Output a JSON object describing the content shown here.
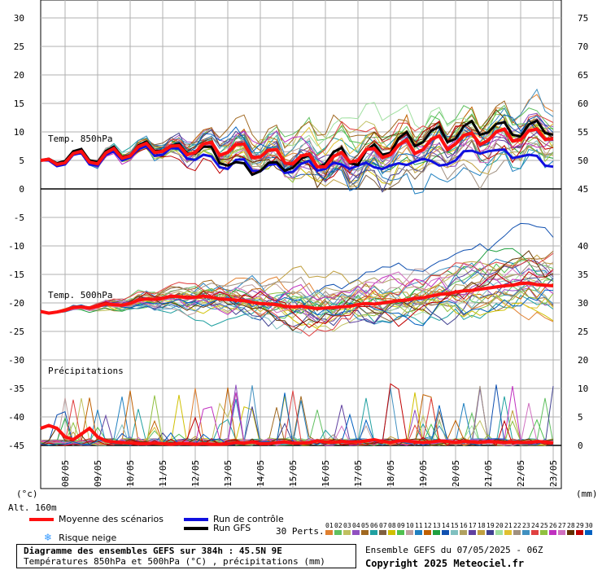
{
  "chart_data": {
    "type": "line",
    "title": "Diagramme des ensembles GEFS sur 384h : 45.5N 9E",
    "subtitle": "Températures 850hPa et 500hPa (°C) , précipitations (mm)",
    "x_labels": [
      "08/05",
      "09/05",
      "10/05",
      "11/05",
      "12/05",
      "13/05",
      "14/05",
      "15/05",
      "16/05",
      "17/05",
      "18/05",
      "19/05",
      "20/05",
      "21/05",
      "22/05",
      "23/05"
    ],
    "x_unit": "6h steps from 07/05 06Z",
    "left_axis": {
      "label": "(°c)",
      "ticks": [
        "30",
        "25",
        "20",
        "15",
        "10",
        "5",
        "0",
        "-5",
        "-10",
        "-15",
        "-20",
        "-25",
        "-30",
        "-35",
        "-40",
        "-45"
      ]
    },
    "right_axis": {
      "label": "(mm)",
      "ticks_t850": [
        "75",
        "70",
        "65",
        "60",
        "55",
        "50",
        "45"
      ],
      "ticks_t500": [
        "40",
        "35",
        "30",
        "25",
        "20"
      ],
      "ticks_precip": [
        "10",
        "5",
        "0"
      ]
    },
    "panels": [
      {
        "label": "Temp. 850hPa",
        "mean": [
          5,
          5.2,
          4.3,
          4.6,
          6.2,
          6.6,
          4.7,
          4.4,
          6.3,
          7.1,
          5.4,
          5.8,
          7.4,
          8,
          6.4,
          6.6,
          7.5,
          7.6,
          6,
          6.4,
          7.9,
          8.2,
          5.9,
          6.4,
          7.8,
          7.9,
          5.5,
          5.6,
          6.8,
          6.9,
          4.6,
          4.4,
          5.8,
          6.1,
          3.9,
          3.9,
          5.7,
          6.4,
          4.7,
          5,
          6.9,
          7.1,
          5.5,
          6,
          7.7,
          8.6,
          6.2,
          6.9,
          8.7,
          9.3,
          6.9,
          7.9,
          9.4,
          9.8,
          7.8,
          8.5,
          10,
          10.5,
          8.4,
          8.6,
          10.2,
          10.5,
          8.7,
          8.8
        ],
        "control": [
          5,
          5,
          4,
          4.3,
          6,
          6.3,
          4.3,
          4.1,
          6,
          6.6,
          5,
          5.5,
          7,
          7.5,
          5.8,
          6,
          7.2,
          7.1,
          5.3,
          5.1,
          6,
          5.7,
          3.8,
          3.5,
          5.1,
          5.2,
          3.2,
          3.1,
          4.2,
          4.4,
          2.8,
          3,
          4.4,
          4.9,
          3.2,
          3.5,
          4.6,
          4.3,
          3.5,
          4.1,
          4.6,
          3.8,
          3.5,
          4.1,
          4.5,
          4.2,
          4.8,
          5.3,
          4.9,
          4.1,
          4.3,
          5,
          6.6,
          6.7,
          6.2,
          6.6,
          6.8,
          6.9,
          5.4,
          5.7,
          6,
          5.8,
          4.1,
          3.9
        ],
        "gfs": [
          5,
          5.3,
          4.5,
          4.9,
          6.6,
          7,
          5,
          4.7,
          6.6,
          7.4,
          5.6,
          5.9,
          7.6,
          8.3,
          6.6,
          6.7,
          7.6,
          7.9,
          6.2,
          6.2,
          7.4,
          7.4,
          4.5,
          4.1,
          4.7,
          4.5,
          2.5,
          3.1,
          4.6,
          4.7,
          3.2,
          3.7,
          5.3,
          5.9,
          3.8,
          4.4,
          6.5,
          7.2,
          4.5,
          4.2,
          6.7,
          7.8,
          6,
          6.3,
          8.9,
          10,
          7.5,
          8.2,
          10.2,
          10.9,
          8.2,
          8.8,
          11,
          11.9,
          9.5,
          9.9,
          11.4,
          11.7,
          9.5,
          9.2,
          11.3,
          12,
          9.8,
          9.5
        ]
      },
      {
        "label": "Temp. 500hPa",
        "mean": [
          -21.5,
          -21.8,
          -21.6,
          -21.3,
          -20.8,
          -20.7,
          -20.9,
          -20.6,
          -20.2,
          -20.3,
          -20.4,
          -20.1,
          -19.5,
          -19.3,
          -19.4,
          -19.2,
          -18.8,
          -18.9,
          -19.1,
          -19,
          -18.8,
          -19,
          -19.3,
          -19.4,
          -19.5,
          -19.6,
          -19.9,
          -20.1,
          -20.2,
          -20.3,
          -20.6,
          -20.7,
          -20.6,
          -20.8,
          -21,
          -20.9,
          -20.8,
          -20.7,
          -20.6,
          -20.3,
          -20.1,
          -20.2,
          -20,
          -19.8,
          -19.6,
          -19.5,
          -19.2,
          -19.1,
          -18.8,
          -18.5,
          -18.4,
          -18.1,
          -17.9,
          -17.8,
          -17.6,
          -17.4,
          -17.2,
          -17,
          -16.9,
          -16.6,
          -16.5,
          -16.8,
          -16.9,
          -17
        ]
      },
      {
        "label": "Précipitations",
        "mean": [
          3,
          3.5,
          3,
          1.5,
          1,
          2,
          3,
          1.5,
          0.8,
          0.6,
          0.5,
          0.4,
          0.3,
          0.3,
          0.4,
          0.3,
          0.2,
          0.3,
          0.3,
          0.2,
          0.3,
          0.2,
          0.2,
          0.3,
          0.5,
          0.4,
          0.6,
          0.3,
          0.3,
          0.5,
          0.6,
          0.4,
          0.4,
          0.5,
          0.8,
          0.6,
          0.5,
          0.7,
          0.6,
          0.6,
          0.8,
          1,
          0.7,
          0.5,
          0.8,
          0.8,
          0.6,
          0.5,
          0.6,
          0.8,
          0.7,
          0.5,
          0.7,
          0.6,
          0.5,
          0.7,
          0.6,
          0.5,
          0.6,
          0.5,
          0.5,
          0.7,
          0.6,
          0.4
        ]
      }
    ],
    "members": 30
  },
  "legend": {
    "mean_label": "Moyenne des scénarios",
    "control_label": "Run de contrôle",
    "gfs_label": "Run GFS",
    "snow_label": "Risque neige",
    "alt_label": "Alt. 160m",
    "perts_label": "30 Perts.",
    "colors": {
      "mean": "#ff1010",
      "control": "#1010e0",
      "gfs": "#000000"
    }
  },
  "perts": {
    "numbers": [
      "01",
      "02",
      "03",
      "04",
      "05",
      "06",
      "07",
      "08",
      "09",
      "10",
      "11",
      "12",
      "13",
      "14",
      "15",
      "16",
      "17",
      "18",
      "19",
      "20",
      "21",
      "22",
      "23",
      "24",
      "25",
      "26",
      "27",
      "28",
      "29",
      "30"
    ],
    "colors": [
      "#e08030",
      "#60c060",
      "#c0c060",
      "#9050c0",
      "#a06820",
      "#20a0a0",
      "#806040",
      "#d0c000",
      "#50c050",
      "#c0a0a0",
      "#2080c0",
      "#c06000",
      "#20a040",
      "#1050b0",
      "#80c0c0",
      "#b0a060",
      "#6040a0",
      "#c0a040",
      "#404090",
      "#a0e0a0",
      "#e0c030",
      "#a09080",
      "#4090c0",
      "#e04040",
      "#90c040",
      "#c030c0",
      "#d070c0",
      "#603000",
      "#c00000",
      "#0060c0"
    ]
  },
  "footer": {
    "title": "Diagramme des ensembles GEFS sur 384h : 45.5N 9E",
    "subtitle": "Températures 850hPa et 500hPa (°C) , précipitations (mm)",
    "run_info": "Ensemble GEFS du 07/05/2025 - 06Z",
    "copyright": "Copyright 2025 Meteociel.fr"
  }
}
